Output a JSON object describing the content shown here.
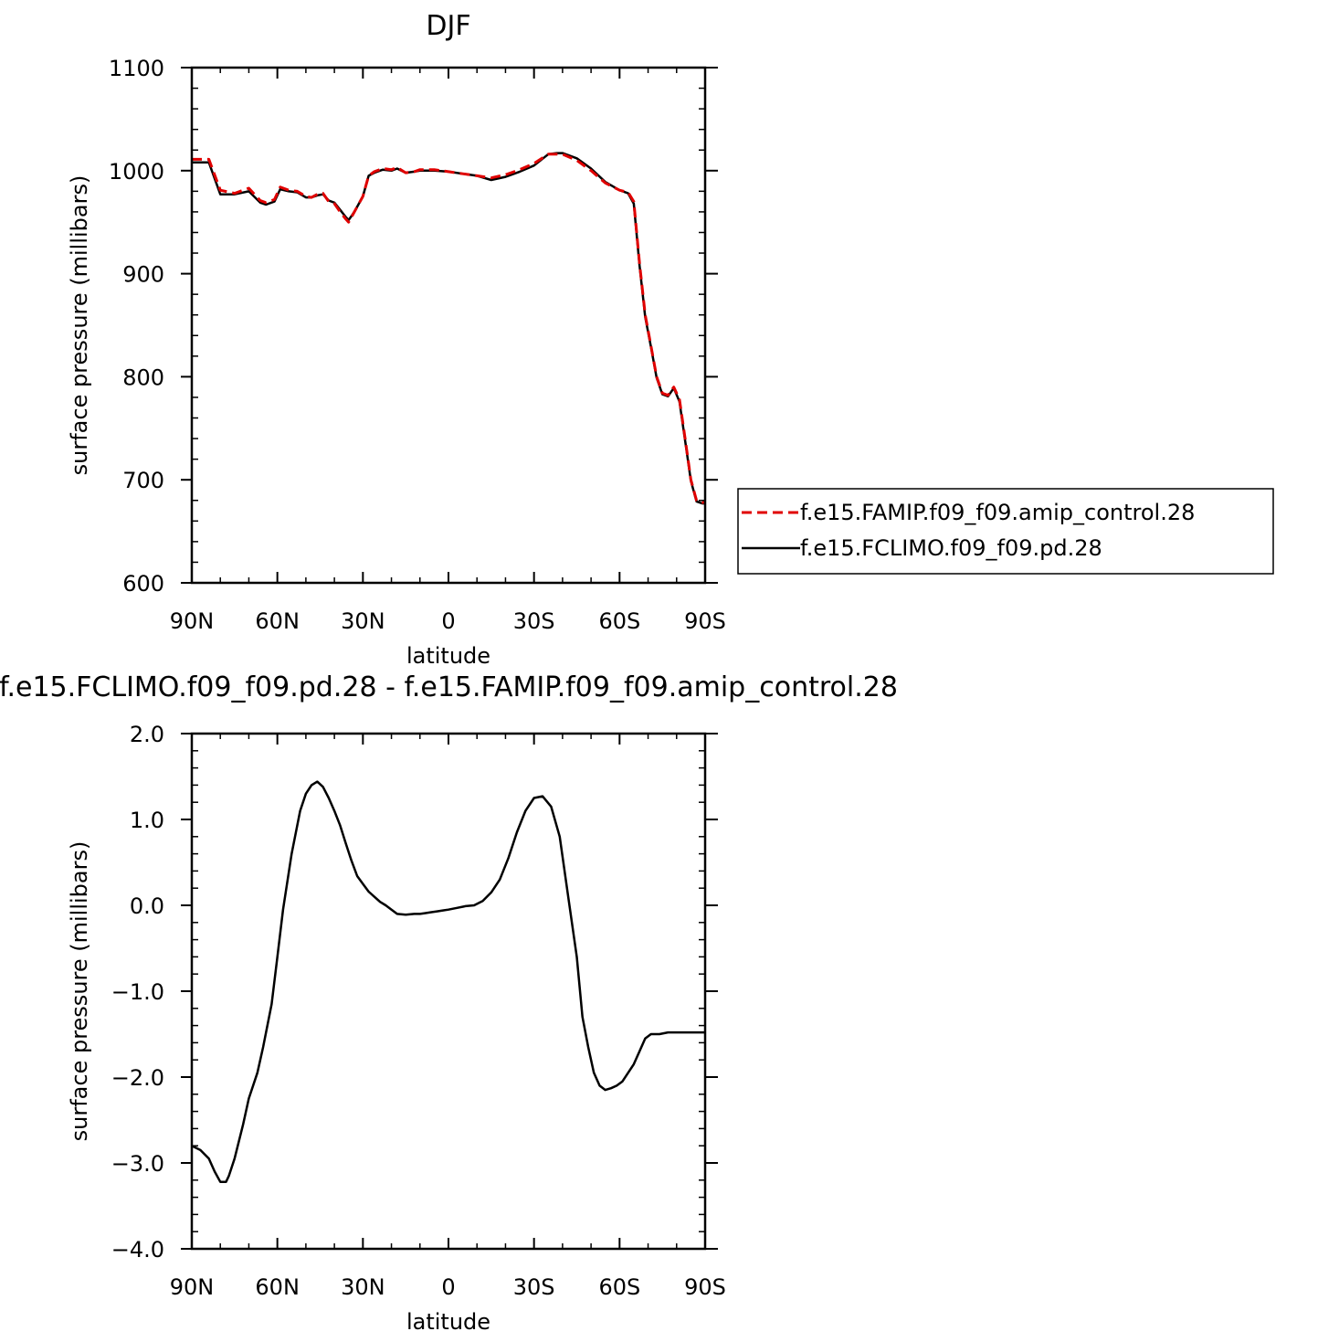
{
  "chart_data": [
    {
      "type": "line",
      "title": "DJF",
      "xlabel": "latitude",
      "ylabel": "surface pressure (millibars)",
      "xlim": [
        90,
        -90
      ],
      "ylim": [
        600,
        1100
      ],
      "x_ticks": [
        {
          "v": 90,
          "label": "90N"
        },
        {
          "v": 60,
          "label": "60N"
        },
        {
          "v": 30,
          "label": "30N"
        },
        {
          "v": 0,
          "label": "0"
        },
        {
          "v": -30,
          "label": "30S"
        },
        {
          "v": -60,
          "label": "60S"
        },
        {
          "v": -90,
          "label": "90S"
        }
      ],
      "y_ticks": [
        {
          "v": 600,
          "label": "600"
        },
        {
          "v": 700,
          "label": "700"
        },
        {
          "v": 800,
          "label": "800"
        },
        {
          "v": 900,
          "label": "900"
        },
        {
          "v": 1000,
          "label": "1000"
        },
        {
          "v": 1100,
          "label": "1100"
        }
      ],
      "legend_position": "right",
      "series": [
        {
          "name": "f.e15.FAMIP.f09_f09.amip_control.28",
          "color": "#e00000",
          "dash": "dashed",
          "x": [
            90,
            84,
            80,
            75,
            70,
            66,
            64,
            61,
            59,
            56,
            53,
            50,
            48,
            46,
            44,
            42,
            40,
            38,
            36,
            35,
            33,
            30,
            28,
            26,
            23,
            20,
            18,
            15,
            12,
            10,
            5,
            0,
            -5,
            -10,
            -15,
            -20,
            -25,
            -30,
            -35,
            -38,
            -40,
            -45,
            -50,
            -55,
            -60,
            -63,
            -65,
            -67,
            -69,
            -71,
            -73,
            -75,
            -77,
            -79,
            -81,
            -83,
            -85,
            -87,
            -89,
            -90
          ],
          "y": [
            1011,
            1011,
            981,
            978,
            983,
            971,
            969,
            972,
            984,
            981,
            980,
            975,
            974,
            977,
            978,
            970,
            968,
            960,
            953,
            950,
            960,
            975,
            995,
            999,
            1002,
            1001,
            1003,
            998,
            999,
            1001,
            1001,
            999,
            997,
            995,
            993,
            996,
            1001,
            1007,
            1016,
            1016,
            1016,
            1010,
            1000,
            988,
            981,
            979,
            970,
            910,
            860,
            830,
            800,
            784,
            782,
            790,
            778,
            740,
            700,
            680,
            678,
            678
          ]
        },
        {
          "name": "f.e15.FCLIMO.f09_f09.pd.28",
          "color": "#000000",
          "dash": "solid",
          "x": [
            90,
            84,
            80,
            75,
            70,
            66,
            64,
            61,
            59,
            56,
            53,
            50,
            48,
            46,
            44,
            42,
            40,
            38,
            36,
            35,
            33,
            30,
            28,
            26,
            23,
            20,
            18,
            15,
            12,
            10,
            5,
            0,
            -5,
            -10,
            -15,
            -20,
            -25,
            -30,
            -35,
            -38,
            -40,
            -45,
            -50,
            -55,
            -60,
            -63,
            -65,
            -67,
            -69,
            -71,
            -73,
            -75,
            -77,
            -79,
            -81,
            -83,
            -85,
            -87,
            -89,
            -90
          ],
          "y": [
            1008,
            1008,
            977,
            977,
            980,
            969,
            967,
            970,
            982,
            980,
            979,
            974,
            974,
            976,
            977,
            971,
            969,
            962,
            955,
            952,
            960,
            975,
            995,
            998,
            1001,
            1000,
            1002,
            998,
            999,
            1000,
            1000,
            999,
            997,
            995,
            991,
            994,
            999,
            1005,
            1016,
            1017,
            1017,
            1012,
            1002,
            989,
            981,
            978,
            968,
            908,
            858,
            829,
            799,
            783,
            781,
            789,
            776,
            738,
            699,
            679,
            677,
            677
          ]
        }
      ]
    },
    {
      "type": "line",
      "title": "f.e15.FCLIMO.f09_f09.pd.28 - f.e15.FAMIP.f09_f09.amip_control.28",
      "xlabel": "latitude",
      "ylabel": "surface pressure (millibars)",
      "xlim": [
        90,
        -90
      ],
      "ylim": [
        -4.0,
        2.0
      ],
      "x_ticks": [
        {
          "v": 90,
          "label": "90N"
        },
        {
          "v": 60,
          "label": "60N"
        },
        {
          "v": 30,
          "label": "30N"
        },
        {
          "v": 0,
          "label": "0"
        },
        {
          "v": -30,
          "label": "30S"
        },
        {
          "v": -60,
          "label": "60S"
        },
        {
          "v": -90,
          "label": "90S"
        }
      ],
      "y_ticks": [
        {
          "v": -4.0,
          "label": "−4.0"
        },
        {
          "v": -3.0,
          "label": "−3.0"
        },
        {
          "v": -2.0,
          "label": "−2.0"
        },
        {
          "v": -1.0,
          "label": "−1.0"
        },
        {
          "v": 0.0,
          "label": "0.0"
        },
        {
          "v": 1.0,
          "label": "1.0"
        },
        {
          "v": 2.0,
          "label": "2.0"
        }
      ],
      "series": [
        {
          "color": "#000000",
          "dash": "solid",
          "x": [
            90,
            87,
            84,
            82,
            80,
            78,
            77,
            75,
            72,
            70,
            67,
            65,
            62,
            60,
            58,
            55,
            52,
            50,
            48,
            46,
            44,
            42,
            40,
            38,
            36,
            34,
            32,
            30,
            28,
            26,
            24,
            22,
            20,
            18,
            15,
            12,
            10,
            8,
            6,
            4,
            2,
            0,
            -3,
            -6,
            -9,
            -12,
            -15,
            -18,
            -21,
            -24,
            -27,
            -30,
            -33,
            -36,
            -39,
            -42,
            -45,
            -47,
            -49,
            -51,
            -53,
            -55,
            -57,
            -59,
            -61,
            -63,
            -65,
            -67,
            -69,
            -71,
            -74,
            -77,
            -80,
            -83,
            -85,
            -88,
            -90
          ],
          "y": [
            -2.8,
            -2.85,
            -2.95,
            -3.1,
            -3.22,
            -3.22,
            -3.15,
            -2.95,
            -2.55,
            -2.25,
            -1.95,
            -1.65,
            -1.15,
            -0.6,
            -0.05,
            0.6,
            1.1,
            1.3,
            1.4,
            1.44,
            1.38,
            1.25,
            1.1,
            0.93,
            0.72,
            0.52,
            0.34,
            0.25,
            0.16,
            0.1,
            0.04,
            0,
            -0.05,
            -0.1,
            -0.11,
            -0.1,
            -0.1,
            -0.09,
            -0.08,
            -0.07,
            -0.06,
            -0.05,
            -0.03,
            -0.01,
            0,
            0.05,
            0.15,
            0.3,
            0.55,
            0.85,
            1.1,
            1.25,
            1.27,
            1.15,
            0.8,
            0.1,
            -0.6,
            -1.3,
            -1.65,
            -1.95,
            -2.1,
            -2.15,
            -2.13,
            -2.1,
            -2.05,
            -1.95,
            -1.85,
            -1.7,
            -1.55,
            -1.5,
            -1.5,
            -1.48,
            -1.48,
            -1.48,
            -1.48,
            -1.48,
            -1.48
          ]
        }
      ]
    }
  ]
}
